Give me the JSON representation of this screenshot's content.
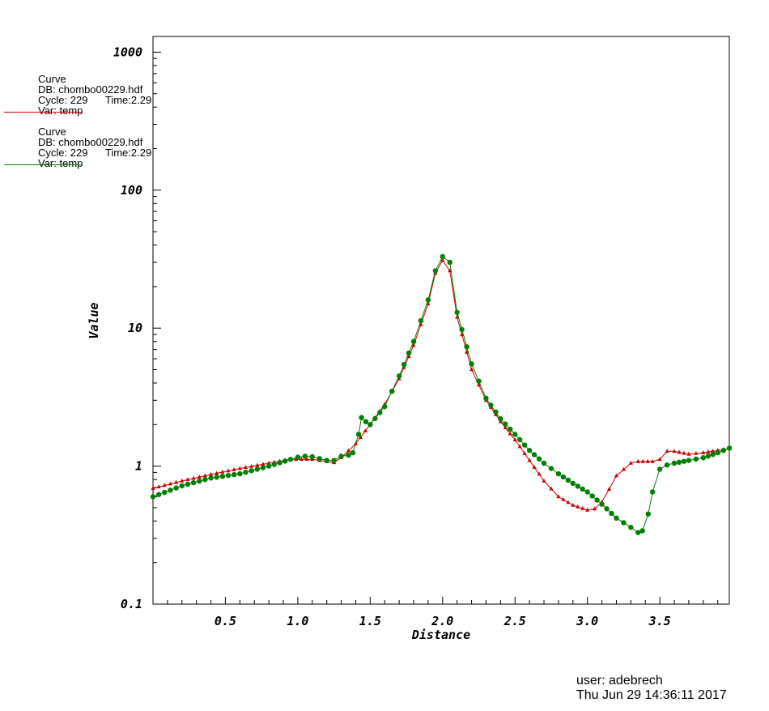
{
  "legend": [
    {
      "line1": "Curve",
      "line2": "DB: chombo00229.hdf",
      "line3": "Cycle: 229      Time:2.29",
      "line4": "Var: temp",
      "color": "#cc0000"
    },
    {
      "line1": "Curve",
      "line2": "DB: chombo00229.hdf",
      "line3": "Cycle: 229      Time:2.29",
      "line4": "Var: temp",
      "color": "#008000"
    }
  ],
  "footer": {
    "user": "user: adebrech",
    "date": "Thu Jun 29 14:36:11 2017"
  },
  "chart_data": {
    "type": "line",
    "title": "",
    "xlabel": "Distance",
    "ylabel": "Value",
    "xlim": [
      0.0,
      3.98
    ],
    "ylim": [
      0.1,
      1300
    ],
    "yscale": "log",
    "grid": false,
    "legend_position": "top-left outside",
    "x_ticks": [
      "0.5",
      "1.0",
      "1.5",
      "2.0",
      "2.5",
      "3.0",
      "3.5"
    ],
    "x_tick_values": [
      0.5,
      1.0,
      1.5,
      2.0,
      2.5,
      3.0,
      3.5
    ],
    "y_ticks": [
      "0.1",
      "1",
      "10",
      "100",
      "1000"
    ],
    "y_tick_values": [
      0.1,
      1,
      10,
      100,
      1000
    ],
    "series": [
      {
        "color": "#cc0000",
        "marker": "triangle",
        "x": [
          0.0,
          0.2,
          0.4,
          0.6,
          0.8,
          0.95,
          1.1,
          1.2,
          1.25,
          1.3,
          1.4,
          1.5,
          1.6,
          1.7,
          1.8,
          1.9,
          1.95,
          2.0,
          2.05,
          2.1,
          2.2,
          2.3,
          2.4,
          2.5,
          2.6,
          2.7,
          2.8,
          2.9,
          3.0,
          3.05,
          3.1,
          3.15,
          3.2,
          3.3,
          3.35,
          3.45,
          3.5,
          3.55,
          3.6,
          3.7,
          3.8,
          3.9,
          3.98
        ],
        "y": [
          0.69,
          0.78,
          0.87,
          0.96,
          1.05,
          1.12,
          1.12,
          1.08,
          1.06,
          1.15,
          1.45,
          2.0,
          2.8,
          4.3,
          7.5,
          15.0,
          25.0,
          31.0,
          26.0,
          12.0,
          5.0,
          3.0,
          2.1,
          1.55,
          1.1,
          0.78,
          0.6,
          0.52,
          0.48,
          0.49,
          0.55,
          0.68,
          0.85,
          1.05,
          1.08,
          1.08,
          1.12,
          1.28,
          1.28,
          1.22,
          1.25,
          1.3,
          1.34
        ]
      },
      {
        "color": "#008000",
        "marker": "circle",
        "x": [
          0.0,
          0.2,
          0.4,
          0.6,
          0.8,
          0.95,
          1.0,
          1.05,
          1.1,
          1.2,
          1.25,
          1.3,
          1.35,
          1.38,
          1.42,
          1.44,
          1.47,
          1.5,
          1.6,
          1.7,
          1.8,
          1.9,
          1.95,
          2.0,
          2.05,
          2.1,
          2.2,
          2.3,
          2.4,
          2.5,
          2.6,
          2.7,
          2.8,
          2.9,
          3.0,
          3.1,
          3.2,
          3.3,
          3.35,
          3.38,
          3.42,
          3.45,
          3.5,
          3.55,
          3.6,
          3.7,
          3.8,
          3.9,
          3.98
        ],
        "y": [
          0.6,
          0.72,
          0.82,
          0.88,
          1.0,
          1.12,
          1.16,
          1.18,
          1.17,
          1.1,
          1.1,
          1.18,
          1.2,
          1.25,
          1.7,
          2.25,
          2.1,
          2.0,
          2.7,
          4.5,
          8.0,
          16.0,
          26.0,
          33.0,
          30.0,
          13.0,
          5.5,
          3.1,
          2.2,
          1.7,
          1.3,
          1.05,
          0.88,
          0.75,
          0.65,
          0.53,
          0.42,
          0.36,
          0.33,
          0.34,
          0.45,
          0.65,
          0.95,
          1.02,
          1.05,
          1.1,
          1.15,
          1.25,
          1.35
        ]
      }
    ]
  }
}
